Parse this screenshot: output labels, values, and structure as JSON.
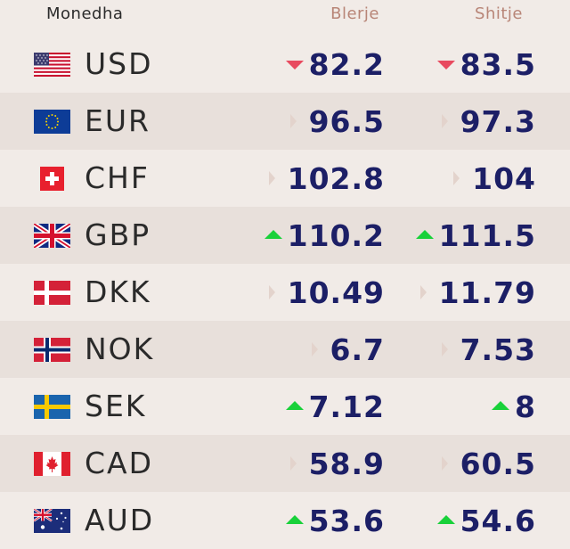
{
  "header": {
    "currency": "Monedha",
    "buy": "Blerje",
    "sell": "Shitje"
  },
  "colors": {
    "up": "#19d13a",
    "down": "#e84a5f",
    "neutral": "#e3d3cc",
    "value": "#1c1f66"
  },
  "rows": [
    {
      "code": "USD",
      "flag": "us-flag-icon",
      "buy": "82.2",
      "buy_trend": "down",
      "sell": "83.5",
      "sell_trend": "down"
    },
    {
      "code": "EUR",
      "flag": "eu-flag-icon",
      "buy": "96.5",
      "buy_trend": "same",
      "sell": "97.3",
      "sell_trend": "same"
    },
    {
      "code": "CHF",
      "flag": "ch-flag-icon",
      "buy": "102.8",
      "buy_trend": "same",
      "sell": "104",
      "sell_trend": "same"
    },
    {
      "code": "GBP",
      "flag": "gb-flag-icon",
      "buy": "110.2",
      "buy_trend": "up",
      "sell": "111.5",
      "sell_trend": "up"
    },
    {
      "code": "DKK",
      "flag": "dk-flag-icon",
      "buy": "10.49",
      "buy_trend": "same",
      "sell": "11.79",
      "sell_trend": "same"
    },
    {
      "code": "NOK",
      "flag": "no-flag-icon",
      "buy": "6.7",
      "buy_trend": "same",
      "sell": "7.53",
      "sell_trend": "same"
    },
    {
      "code": "SEK",
      "flag": "se-flag-icon",
      "buy": "7.12",
      "buy_trend": "up",
      "sell": "8",
      "sell_trend": "up"
    },
    {
      "code": "CAD",
      "flag": "ca-flag-icon",
      "buy": "58.9",
      "buy_trend": "same",
      "sell": "60.5",
      "sell_trend": "same"
    },
    {
      "code": "AUD",
      "flag": "au-flag-icon",
      "buy": "53.6",
      "buy_trend": "up",
      "sell": "54.6",
      "sell_trend": "up"
    }
  ]
}
